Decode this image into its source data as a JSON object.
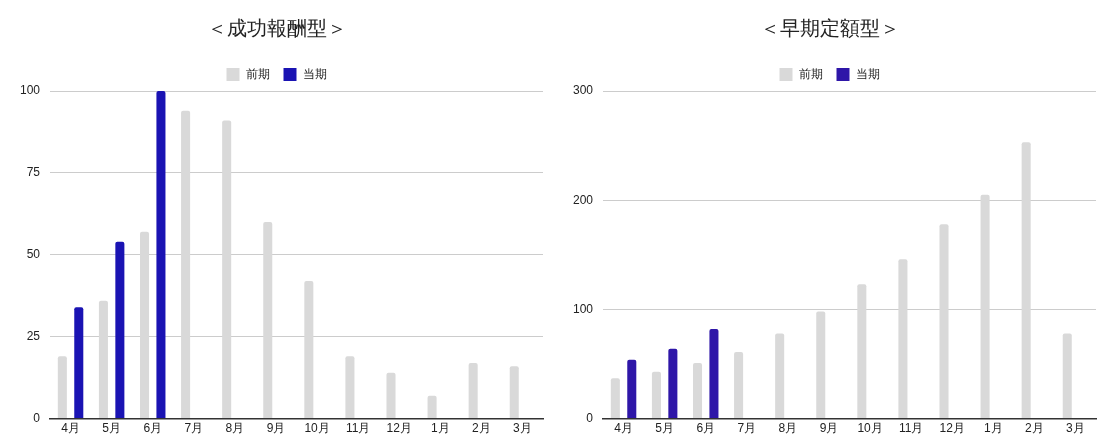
{
  "chart_data": [
    {
      "type": "bar",
      "title": "＜成功報酬型＞",
      "categories": [
        "4月",
        "5月",
        "6月",
        "7月",
        "8月",
        "9月",
        "10月",
        "11月",
        "12月",
        "1月",
        "2月",
        "3月"
      ],
      "series": [
        {
          "name": "前期",
          "color": "#d9d9d9",
          "values": [
            19,
            36,
            57,
            94,
            91,
            60,
            42,
            19,
            14,
            7,
            17,
            16
          ]
        },
        {
          "name": "当期",
          "color": "#1a13b3",
          "values": [
            34,
            54,
            100,
            null,
            null,
            null,
            null,
            null,
            null,
            null,
            null,
            null
          ]
        }
      ],
      "ylim": [
        0,
        100
      ],
      "yticks": [
        0,
        25,
        50,
        75,
        100
      ],
      "grid": "y",
      "legend": "top"
    },
    {
      "type": "bar",
      "title": "＜早期定額型＞",
      "categories": [
        "4月",
        "5月",
        "6月",
        "7月",
        "8月",
        "9月",
        "10月",
        "11月",
        "12月",
        "1月",
        "2月",
        "3月"
      ],
      "series": [
        {
          "name": "前期",
          "color": "#d9d9d9",
          "values": [
            37,
            43,
            51,
            61,
            78,
            98,
            123,
            146,
            178,
            205,
            253,
            78
          ]
        },
        {
          "name": "当期",
          "color": "#2e16a8",
          "values": [
            54,
            64,
            82,
            null,
            null,
            null,
            null,
            null,
            null,
            null,
            null,
            null
          ]
        }
      ],
      "ylim": [
        0,
        300
      ],
      "yticks": [
        0,
        100,
        200,
        300
      ],
      "grid": "y",
      "legend": "top"
    }
  ]
}
